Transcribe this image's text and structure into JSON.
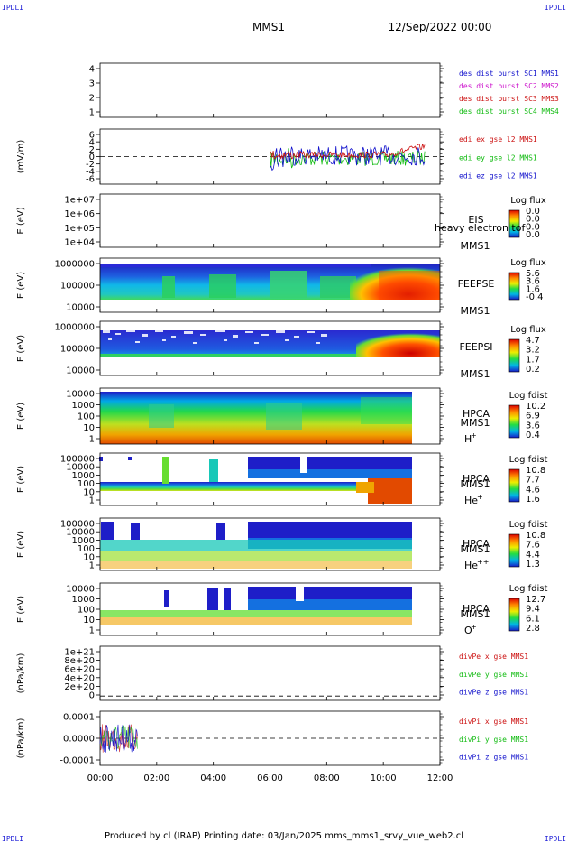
{
  "corners": {
    "left": "IPDLI",
    "right": "IPDLI"
  },
  "header": {
    "spacecraft": "MMS1",
    "date": "12/Sep/2022 00:00"
  },
  "footer": {
    "text": "Produced by cl (IRAP)   Printing date: 03/Jan/2025   mms_mms1_srvy_vue_web2.cl"
  },
  "colors": {
    "blue": "#1111cc",
    "magenta": "#cc11cc",
    "red": "#cc1111",
    "green": "#11bb11"
  },
  "chart_data": {
    "type": "multi-panel time series",
    "xaxis": {
      "range": [
        "00:00",
        "12:00"
      ],
      "ticks": [
        "00:00",
        "02:00",
        "04:00",
        "06:00",
        "08:00",
        "10:00",
        "12:00"
      ]
    },
    "panels": [
      {
        "id": "dist",
        "type": "line",
        "ylabel": "",
        "yticks": [
          "4",
          "3",
          "2",
          "1"
        ],
        "ylim": [
          0.5,
          4.5
        ],
        "legend": [
          {
            "name": "des dist burst SC1 MMS1",
            "color": "#1111cc"
          },
          {
            "name": "des dist burst SC2 MMS2",
            "color": "#cc11cc"
          },
          {
            "name": "des dist burst SC3 MMS3",
            "color": "#cc1111"
          },
          {
            "name": "des dist burst SC4 MMS4",
            "color": "#11bb11"
          }
        ]
      },
      {
        "id": "edi",
        "type": "line",
        "ylabel": "(mV/m)",
        "yticks": [
          "6",
          "4",
          "2",
          "0",
          "-2",
          "-4",
          "-6"
        ],
        "ylim": [
          -7,
          7
        ],
        "legend": [
          {
            "name": "edi ex gse l2 MMS1",
            "color": "#cc1111"
          },
          {
            "name": "edi ey gse l2 MMS1",
            "color": "#11bb11"
          },
          {
            "name": "edi ez gse l2 MMS1",
            "color": "#1111cc"
          }
        ],
        "data_span": [
          "06:00",
          "11:30"
        ]
      },
      {
        "id": "eis",
        "type": "heatmap",
        "ylabel": "E (eV)",
        "yticks": [
          "1e+07",
          "1e+06",
          "1e+05",
          "1e+04"
        ],
        "labels": [
          "EIS",
          "MMS1"
        ],
        "overlay": "heavy electron tof",
        "colorbar": {
          "title": "Log flux",
          "values": [
            "0.0",
            "0.0",
            "0.0",
            "0.0"
          ]
        }
      },
      {
        "id": "feepse",
        "type": "heatmap",
        "ylabel": "E (eV)",
        "yticks": [
          "1000000",
          "100000",
          "10000"
        ],
        "labels": [
          "FEEPSE",
          "MMS1"
        ],
        "colorbar": {
          "title": "Log flux",
          "values": [
            "5.6",
            "3.6",
            "1.6",
            "-0.4"
          ]
        }
      },
      {
        "id": "feepsi",
        "type": "heatmap",
        "ylabel": "E (eV)",
        "yticks": [
          "1000000",
          "100000",
          "10000"
        ],
        "labels": [
          "FEEPSI",
          "MMS1"
        ],
        "colorbar": {
          "title": "Log flux",
          "values": [
            "4.7",
            "3.2",
            "1.7",
            "0.2"
          ]
        }
      },
      {
        "id": "hpca_h",
        "type": "heatmap",
        "ylabel": "E (eV)",
        "yticks": [
          "10000",
          "1000",
          "100",
          "10",
          "1"
        ],
        "labels": [
          "HPCA",
          "MMS1"
        ],
        "species": "H",
        "charge": "+",
        "colorbar": {
          "title": "Log fdist",
          "values": [
            "10.2",
            "6.9",
            "3.6",
            "0.4"
          ]
        }
      },
      {
        "id": "hpca_he",
        "type": "heatmap",
        "ylabel": "E (eV)",
        "yticks": [
          "100000",
          "10000",
          "1000",
          "100",
          "10",
          "1"
        ],
        "labels": [
          "HPCA",
          "MMS1"
        ],
        "species": "He",
        "charge": "+",
        "colorbar": {
          "title": "Log fdist",
          "values": [
            "10.8",
            "7.7",
            "4.6",
            "1.6"
          ]
        }
      },
      {
        "id": "hpca_hepp",
        "type": "heatmap",
        "ylabel": "E (eV)",
        "yticks": [
          "100000",
          "10000",
          "1000",
          "100",
          "10",
          "1"
        ],
        "labels": [
          "HPCA",
          "MMS1"
        ],
        "species": "He",
        "charge": "++",
        "colorbar": {
          "title": "Log fdist",
          "values": [
            "10.8",
            "7.6",
            "4.4",
            "1.3"
          ]
        }
      },
      {
        "id": "hpca_o",
        "type": "heatmap",
        "ylabel": "E (eV)",
        "yticks": [
          "10000",
          "1000",
          "100",
          "10",
          "1"
        ],
        "labels": [
          "HPCA",
          "MMS1"
        ],
        "species": "O",
        "charge": "+",
        "colorbar": {
          "title": "Log fdist",
          "values": [
            "12.7",
            "9.4",
            "6.1",
            "2.8"
          ]
        }
      },
      {
        "id": "divpe",
        "type": "line",
        "ylabel": "(nPa/km)",
        "yticks": [
          "1e+21",
          "8e+20",
          "6e+20",
          "4e+20",
          "2e+20",
          "0"
        ],
        "legend": [
          {
            "name": "divPe x gse MMS1",
            "color": "#cc1111"
          },
          {
            "name": "divPe y gse MMS1",
            "color": "#11bb11"
          },
          {
            "name": "divPe z gse MMS1",
            "color": "#1111cc"
          }
        ]
      },
      {
        "id": "divpi",
        "type": "line",
        "ylabel": "(nPa/km)",
        "yticks": [
          "0.0001",
          "0.0000",
          "-0.0001"
        ],
        "legend": [
          {
            "name": "divPi x gse MMS1",
            "color": "#cc1111"
          },
          {
            "name": "divPi y gse MMS1",
            "color": "#11bb11"
          },
          {
            "name": "divPi z gse MMS1",
            "color": "#1111cc"
          }
        ],
        "data_span": [
          "00:00",
          "01:20"
        ]
      }
    ]
  }
}
